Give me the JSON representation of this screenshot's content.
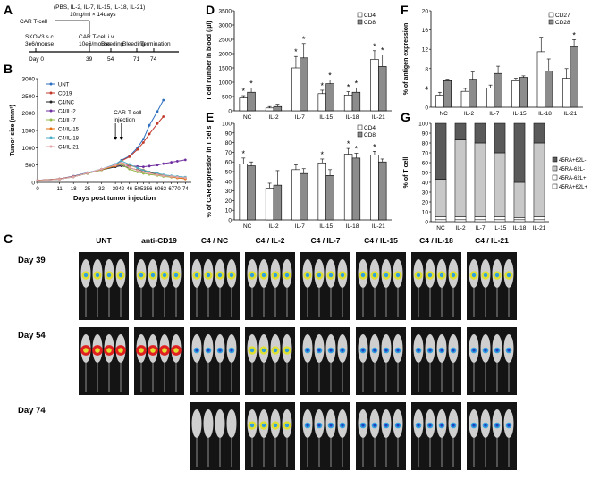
{
  "panels": {
    "A": "A",
    "B": "B",
    "C": "C",
    "D": "D",
    "E": "E",
    "F": "F",
    "G": "G"
  },
  "schematic": {
    "header": "(PBS, IL-2, IL-7, IL-15, IL-18, IL-21)",
    "dose": "10ng/ml × 14days",
    "car_t": "CAR T-cell",
    "skov3_1": "SKOV3  s.c.",
    "skov3_2": "3e6/mouse",
    "cart_iv_1": "CAR T-cell i.v.",
    "cart_iv_2": "10e6/mouse",
    "bleeding": "Bleeding",
    "bleeding2": "Bleeding",
    "termination": "Termination",
    "day0": "Day 0",
    "d39": "39",
    "d54": "54",
    "d71": "71",
    "d74": "74"
  },
  "imaging": {
    "columns": [
      "UNT",
      "anti-CD19",
      "C4 / NC",
      "C4 / IL-2",
      "C4 / IL-7",
      "C4 / IL-15",
      "C4 / IL-18",
      "C4 / IL-21"
    ],
    "rows": [
      "Day 39",
      "Day 54",
      "Day 74"
    ]
  },
  "colors": {
    "white_bar": "#ffffff",
    "gray_bar": "#8c8c8c",
    "dark": "#5a5a5a",
    "light": "#c8c8c8"
  },
  "chart_data": [
    {
      "id": "B",
      "type": "line",
      "title": "",
      "xlabel": "Days post tumor injection",
      "ylabel": "Tumor size (mm³)",
      "xticks": [
        0,
        11,
        18,
        25,
        32,
        39,
        42,
        46,
        50,
        53,
        56,
        60,
        63,
        67,
        70,
        74
      ],
      "yticks": [
        0,
        500,
        1000,
        1500,
        2000,
        2500,
        3000
      ],
      "ylim": [
        0,
        3000
      ],
      "annotation": "CAR-T cell\ninjection",
      "x": [
        0,
        11,
        18,
        25,
        32,
        39,
        42,
        46,
        50,
        53,
        56,
        60,
        63,
        67,
        70,
        74
      ],
      "series": [
        {
          "name": "UNT",
          "color": "#2e6fbf",
          "marker": "diamond",
          "x": [
            0,
            11,
            18,
            25,
            32,
            39,
            42,
            46,
            50,
            53,
            56,
            60,
            63
          ],
          "values": [
            60,
            100,
            180,
            280,
            380,
            520,
            640,
            760,
            1000,
            1250,
            1650,
            2050,
            2380
          ]
        },
        {
          "name": "CD19",
          "color": "#c0392b",
          "marker": "square",
          "x": [
            0,
            11,
            18,
            25,
            32,
            39,
            42,
            46,
            50,
            53,
            56,
            60,
            63
          ],
          "values": [
            60,
            100,
            170,
            260,
            360,
            500,
            620,
            740,
            950,
            1150,
            1400,
            1700,
            1900
          ]
        },
        {
          "name": "C4/NC",
          "color": "#222222",
          "marker": "triangle",
          "x": [
            0,
            11,
            18,
            25,
            32,
            39,
            42,
            46,
            50,
            53,
            56,
            60,
            63,
            67,
            70,
            74
          ],
          "values": [
            50,
            90,
            160,
            260,
            360,
            450,
            480,
            420,
            360,
            320,
            280,
            240,
            200,
            170,
            140,
            120
          ]
        },
        {
          "name": "C4/IL-2",
          "color": "#7030a0",
          "marker": "x",
          "x": [
            0,
            11,
            18,
            25,
            32,
            39,
            42,
            46,
            50,
            53,
            56,
            60,
            63,
            67,
            70,
            74
          ],
          "values": [
            55,
            95,
            170,
            270,
            380,
            470,
            500,
            480,
            460,
            450,
            470,
            500,
            540,
            580,
            610,
            650
          ]
        },
        {
          "name": "C4/IL-7",
          "color": "#92b947",
          "marker": "circle",
          "x": [
            0,
            11,
            18,
            25,
            32,
            39,
            42,
            46,
            50,
            53,
            56,
            60,
            63,
            67,
            70,
            74
          ],
          "values": [
            50,
            90,
            160,
            260,
            360,
            480,
            520,
            380,
            300,
            260,
            230,
            200,
            170,
            150,
            130,
            110
          ]
        },
        {
          "name": "C4/IL-15",
          "color": "#e46c0a",
          "marker": "circle",
          "x": [
            0,
            11,
            18,
            25,
            32,
            39,
            42,
            46,
            50,
            53,
            56,
            60,
            63,
            67,
            70,
            74
          ],
          "values": [
            55,
            95,
            165,
            270,
            370,
            480,
            560,
            500,
            420,
            360,
            300,
            250,
            200,
            160,
            130,
            100
          ]
        },
        {
          "name": "C4/IL-18",
          "color": "#4bacc6",
          "marker": "plus",
          "x": [
            0,
            11,
            18,
            25,
            32,
            39,
            42,
            46,
            50,
            53,
            56,
            60,
            63,
            67,
            70,
            74
          ],
          "values": [
            50,
            90,
            160,
            270,
            380,
            520,
            620,
            520,
            420,
            350,
            300,
            260,
            220,
            190,
            170,
            150
          ]
        },
        {
          "name": "C4/IL-21",
          "color": "#e6a3a3",
          "marker": "circle",
          "x": [
            0,
            11,
            18,
            25,
            32,
            39,
            42,
            46,
            50,
            53,
            56,
            60,
            63,
            67,
            70,
            74
          ],
          "values": [
            50,
            90,
            160,
            270,
            380,
            500,
            560,
            430,
            350,
            300,
            260,
            220,
            190,
            170,
            150,
            130
          ]
        }
      ]
    },
    {
      "id": "D",
      "type": "bar",
      "ylabel": "T cell number in blood (/µl)",
      "ylim": [
        0,
        3500
      ],
      "yticks": [
        0,
        500,
        1000,
        1500,
        2000,
        2500,
        3000,
        3500
      ],
      "categories": [
        "NC",
        "IL-2",
        "IL-7",
        "IL-15",
        "IL-18",
        "IL-21"
      ],
      "series": [
        {
          "name": "CD4",
          "values": [
            450,
            100,
            1500,
            600,
            550,
            1800
          ],
          "errors": [
            80,
            50,
            400,
            120,
            120,
            300
          ],
          "stars": [
            true,
            false,
            true,
            true,
            true,
            true
          ]
        },
        {
          "name": "CD8",
          "values": [
            650,
            150,
            1850,
            950,
            650,
            1550
          ],
          "errors": [
            150,
            80,
            500,
            130,
            150,
            400
          ],
          "stars": [
            true,
            false,
            true,
            true,
            true,
            true
          ]
        }
      ]
    },
    {
      "id": "E",
      "type": "bar",
      "ylabel": "% of CAR expression in T cells",
      "ylim": [
        0,
        100
      ],
      "yticks": [
        0,
        10,
        20,
        30,
        40,
        50,
        60,
        70,
        80,
        90,
        100
      ],
      "categories": [
        "NC",
        "IL-2",
        "IL-7",
        "IL-15",
        "IL-18",
        "IL-21"
      ],
      "series": [
        {
          "name": "CD4",
          "values": [
            58,
            33,
            52,
            59,
            68,
            67
          ],
          "errors": [
            6,
            5,
            5,
            4,
            6,
            4
          ],
          "stars": [
            true,
            false,
            false,
            true,
            true,
            true
          ]
        },
        {
          "name": "CD8",
          "values": [
            56,
            36,
            48,
            46,
            64,
            60
          ],
          "errors": [
            4,
            15,
            5,
            6,
            5,
            3
          ],
          "stars": [
            false,
            false,
            false,
            false,
            true,
            false
          ]
        }
      ]
    },
    {
      "id": "F",
      "type": "bar",
      "ylabel": "% of antigen expression",
      "ylim": [
        0,
        20
      ],
      "yticks": [
        0,
        4,
        8,
        12,
        16,
        20
      ],
      "categories": [
        "NC",
        "IL-2",
        "IL-7",
        "IL-15",
        "IL-18",
        "IL-21"
      ],
      "series": [
        {
          "name": "CD27",
          "values": [
            2.5,
            3.3,
            4.0,
            5.5,
            11.5,
            6.0
          ],
          "errors": [
            0.6,
            0.6,
            0.6,
            0.5,
            3.0,
            2.0
          ],
          "stars": [
            false,
            false,
            false,
            false,
            false,
            false
          ]
        },
        {
          "name": "CD28",
          "values": [
            5.5,
            5.8,
            7.0,
            6.2,
            7.5,
            12.5
          ],
          "errors": [
            0.3,
            1.5,
            1.5,
            0.3,
            2.5,
            1.5
          ],
          "stars": [
            false,
            false,
            false,
            false,
            false,
            true
          ]
        }
      ]
    },
    {
      "id": "G",
      "type": "bar",
      "stacked": true,
      "ylabel": "% of  T cell",
      "ylim": [
        0,
        100
      ],
      "yticks": [
        0,
        10,
        20,
        30,
        40,
        50,
        60,
        70,
        80,
        90,
        100
      ],
      "categories": [
        "NC",
        "IL-2",
        "IL-7",
        "IL-15",
        "IL-18",
        "IL-21"
      ],
      "series": [
        {
          "name": "45RA+62L+",
          "values": [
            2,
            2,
            2,
            2,
            2,
            2
          ]
        },
        {
          "name": "45RA-62L+",
          "values": [
            3,
            3,
            3,
            3,
            2,
            3
          ]
        },
        {
          "name": "45RA-62L-",
          "values": [
            38,
            78,
            75,
            65,
            36,
            75
          ]
        },
        {
          "name": "45RA+62L-",
          "values": [
            57,
            17,
            20,
            30,
            60,
            20
          ]
        }
      ]
    }
  ]
}
